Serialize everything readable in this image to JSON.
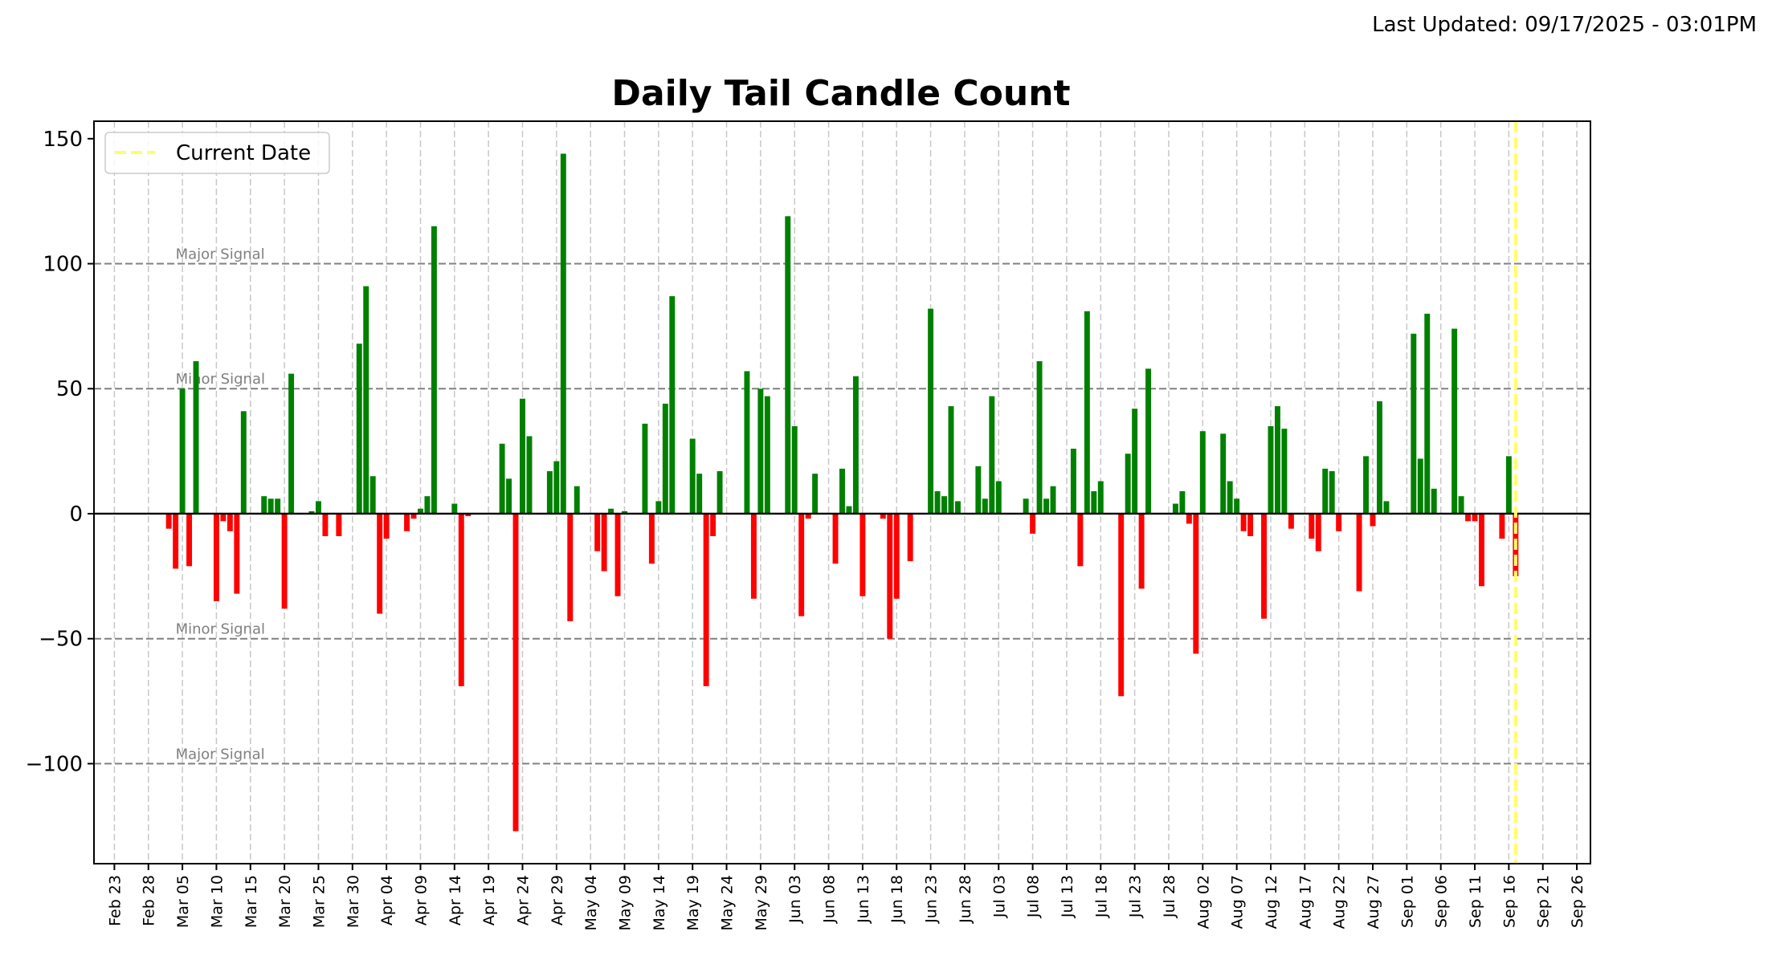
{
  "header": {
    "updated": "Last Updated: 09/17/2025 - 03:01PM"
  },
  "colors": {
    "positive": "#008000",
    "negative": "#ff0000",
    "current_date": "#ffff66",
    "threshold": "#808080",
    "grid": "#c8c8c8",
    "zero_line": "#000000"
  },
  "chart_data": {
    "type": "bar",
    "title": "Daily Tail Candle Count",
    "xlabel": "",
    "ylabel": "",
    "xlim": [
      "2025-02-20",
      "2025-09-28"
    ],
    "ylim": [
      -140,
      157
    ],
    "y_ticks": [
      -100,
      -50,
      0,
      50,
      100,
      150
    ],
    "x_tick_labels": [
      "Feb 23",
      "Feb 28",
      "Mar 05",
      "Mar 10",
      "Mar 15",
      "Mar 20",
      "Mar 25",
      "Mar 30",
      "Apr 04",
      "Apr 09",
      "Apr 14",
      "Apr 19",
      "Apr 24",
      "Apr 29",
      "May 04",
      "May 09",
      "May 14",
      "May 19",
      "May 24",
      "May 29",
      "Jun 03",
      "Jun 08",
      "Jun 13",
      "Jun 18",
      "Jun 23",
      "Jun 28",
      "Jul 03",
      "Jul 08",
      "Jul 13",
      "Jul 18",
      "Jul 23",
      "Jul 28",
      "Aug 02",
      "Aug 07",
      "Aug 12",
      "Aug 17",
      "Aug 22",
      "Aug 27",
      "Sep 01",
      "Sep 06",
      "Sep 11",
      "Sep 16",
      "Sep 21",
      "Sep 26"
    ],
    "x_tick_dates": [
      "2025-02-23",
      "2025-02-28",
      "2025-03-05",
      "2025-03-10",
      "2025-03-15",
      "2025-03-20",
      "2025-03-25",
      "2025-03-30",
      "2025-04-04",
      "2025-04-09",
      "2025-04-14",
      "2025-04-19",
      "2025-04-24",
      "2025-04-29",
      "2025-05-04",
      "2025-05-09",
      "2025-05-14",
      "2025-05-19",
      "2025-05-24",
      "2025-05-29",
      "2025-06-03",
      "2025-06-08",
      "2025-06-13",
      "2025-06-18",
      "2025-06-23",
      "2025-06-28",
      "2025-07-03",
      "2025-07-08",
      "2025-07-13",
      "2025-07-18",
      "2025-07-23",
      "2025-07-28",
      "2025-08-02",
      "2025-08-07",
      "2025-08-12",
      "2025-08-17",
      "2025-08-22",
      "2025-08-27",
      "2025-09-01",
      "2025-09-06",
      "2025-09-11",
      "2025-09-16",
      "2025-09-21",
      "2025-09-26"
    ],
    "grid": true,
    "legend": {
      "placement": "top-left",
      "entries": [
        {
          "label": "Current Date",
          "style": "dashed",
          "color": "#ffff66"
        }
      ]
    },
    "current_date": "2025-09-17",
    "thresholds": [
      {
        "value": 100,
        "label": "Major Signal"
      },
      {
        "value": 50,
        "label": "Minor Signal"
      },
      {
        "value": -50,
        "label": "Minor Signal"
      },
      {
        "value": -100,
        "label": "Major Signal"
      }
    ],
    "bars": [
      {
        "date": "2025-03-03",
        "bull": 0,
        "bear": -6
      },
      {
        "date": "2025-03-04",
        "bull": 0,
        "bear": -22
      },
      {
        "date": "2025-03-05",
        "bull": 50,
        "bear": 0
      },
      {
        "date": "2025-03-06",
        "bull": 0,
        "bear": -21
      },
      {
        "date": "2025-03-07",
        "bull": 61,
        "bear": 0
      },
      {
        "date": "2025-03-10",
        "bull": 0,
        "bear": -35
      },
      {
        "date": "2025-03-11",
        "bull": 0,
        "bear": -3
      },
      {
        "date": "2025-03-12",
        "bull": 0,
        "bear": -7
      },
      {
        "date": "2025-03-13",
        "bull": 0,
        "bear": -32
      },
      {
        "date": "2025-03-14",
        "bull": 41,
        "bear": 0
      },
      {
        "date": "2025-03-17",
        "bull": 7,
        "bear": 0
      },
      {
        "date": "2025-03-18",
        "bull": 6,
        "bear": 0
      },
      {
        "date": "2025-03-19",
        "bull": 6,
        "bear": 0
      },
      {
        "date": "2025-03-20",
        "bull": 0,
        "bear": -38
      },
      {
        "date": "2025-03-21",
        "bull": 56,
        "bear": 0
      },
      {
        "date": "2025-03-24",
        "bull": 1,
        "bear": 0
      },
      {
        "date": "2025-03-25",
        "bull": 5,
        "bear": 0
      },
      {
        "date": "2025-03-26",
        "bull": 0,
        "bear": -9
      },
      {
        "date": "2025-03-28",
        "bull": 0,
        "bear": -9
      },
      {
        "date": "2025-03-31",
        "bull": 68,
        "bear": 0
      },
      {
        "date": "2025-04-01",
        "bull": 91,
        "bear": 0
      },
      {
        "date": "2025-04-02",
        "bull": 15,
        "bear": 0
      },
      {
        "date": "2025-04-03",
        "bull": 0,
        "bear": -40
      },
      {
        "date": "2025-04-04",
        "bull": 0,
        "bear": -10
      },
      {
        "date": "2025-04-07",
        "bull": 0,
        "bear": -7
      },
      {
        "date": "2025-04-08",
        "bull": 0,
        "bear": -2
      },
      {
        "date": "2025-04-09",
        "bull": 2,
        "bear": 0
      },
      {
        "date": "2025-04-10",
        "bull": 7,
        "bear": 0
      },
      {
        "date": "2025-04-11",
        "bull": 115,
        "bear": 0
      },
      {
        "date": "2025-04-14",
        "bull": 4,
        "bear": 0
      },
      {
        "date": "2025-04-15",
        "bull": 0,
        "bear": -69
      },
      {
        "date": "2025-04-16",
        "bull": 0,
        "bear": -1
      },
      {
        "date": "2025-04-21",
        "bull": 28,
        "bear": 0
      },
      {
        "date": "2025-04-22",
        "bull": 14,
        "bear": 0
      },
      {
        "date": "2025-04-23",
        "bull": 0,
        "bear": -127
      },
      {
        "date": "2025-04-24",
        "bull": 46,
        "bear": 0
      },
      {
        "date": "2025-04-25",
        "bull": 31,
        "bear": 0
      },
      {
        "date": "2025-04-28",
        "bull": 17,
        "bear": 0
      },
      {
        "date": "2025-04-29",
        "bull": 21,
        "bear": 0
      },
      {
        "date": "2025-04-30",
        "bull": 144,
        "bear": 0
      },
      {
        "date": "2025-05-01",
        "bull": 0,
        "bear": -43
      },
      {
        "date": "2025-05-02",
        "bull": 11,
        "bear": 0
      },
      {
        "date": "2025-05-05",
        "bull": 0,
        "bear": -15
      },
      {
        "date": "2025-05-06",
        "bull": 0,
        "bear": -23
      },
      {
        "date": "2025-05-07",
        "bull": 2,
        "bear": 0
      },
      {
        "date": "2025-05-08",
        "bull": 0,
        "bear": -33
      },
      {
        "date": "2025-05-09",
        "bull": 1,
        "bear": 0
      },
      {
        "date": "2025-05-12",
        "bull": 36,
        "bear": 0
      },
      {
        "date": "2025-05-13",
        "bull": 0,
        "bear": -20
      },
      {
        "date": "2025-05-14",
        "bull": 5,
        "bear": 0
      },
      {
        "date": "2025-05-15",
        "bull": 44,
        "bear": 0
      },
      {
        "date": "2025-05-16",
        "bull": 87,
        "bear": 0
      },
      {
        "date": "2025-05-19",
        "bull": 30,
        "bear": 0
      },
      {
        "date": "2025-05-20",
        "bull": 16,
        "bear": 0
      },
      {
        "date": "2025-05-21",
        "bull": 0,
        "bear": -69
      },
      {
        "date": "2025-05-22",
        "bull": 0,
        "bear": -9
      },
      {
        "date": "2025-05-23",
        "bull": 17,
        "bear": 0
      },
      {
        "date": "2025-05-27",
        "bull": 57,
        "bear": 0
      },
      {
        "date": "2025-05-28",
        "bull": 0,
        "bear": -34
      },
      {
        "date": "2025-05-29",
        "bull": 50,
        "bear": 0
      },
      {
        "date": "2025-05-30",
        "bull": 47,
        "bear": 0
      },
      {
        "date": "2025-06-02",
        "bull": 119,
        "bear": 0
      },
      {
        "date": "2025-06-03",
        "bull": 35,
        "bear": 0
      },
      {
        "date": "2025-06-04",
        "bull": 0,
        "bear": -41
      },
      {
        "date": "2025-06-05",
        "bull": 0,
        "bear": -2
      },
      {
        "date": "2025-06-06",
        "bull": 16,
        "bear": 0
      },
      {
        "date": "2025-06-09",
        "bull": 0,
        "bear": -20
      },
      {
        "date": "2025-06-10",
        "bull": 18,
        "bear": 0
      },
      {
        "date": "2025-06-11",
        "bull": 3,
        "bear": 0
      },
      {
        "date": "2025-06-12",
        "bull": 55,
        "bear": 0
      },
      {
        "date": "2025-06-13",
        "bull": 0,
        "bear": -33
      },
      {
        "date": "2025-06-16",
        "bull": 0,
        "bear": -2
      },
      {
        "date": "2025-06-17",
        "bull": 0,
        "bear": -50
      },
      {
        "date": "2025-06-18",
        "bull": 0,
        "bear": -34
      },
      {
        "date": "2025-06-20",
        "bull": 0,
        "bear": -19
      },
      {
        "date": "2025-06-23",
        "bull": 82,
        "bear": 0
      },
      {
        "date": "2025-06-24",
        "bull": 9,
        "bear": 0
      },
      {
        "date": "2025-06-25",
        "bull": 7,
        "bear": 0
      },
      {
        "date": "2025-06-26",
        "bull": 43,
        "bear": 0
      },
      {
        "date": "2025-06-27",
        "bull": 5,
        "bear": 0
      },
      {
        "date": "2025-06-30",
        "bull": 19,
        "bear": 0
      },
      {
        "date": "2025-07-01",
        "bull": 6,
        "bear": 0
      },
      {
        "date": "2025-07-02",
        "bull": 47,
        "bear": 0
      },
      {
        "date": "2025-07-03",
        "bull": 13,
        "bear": 0
      },
      {
        "date": "2025-07-07",
        "bull": 6,
        "bear": 0
      },
      {
        "date": "2025-07-08",
        "bull": 0,
        "bear": -8
      },
      {
        "date": "2025-07-09",
        "bull": 61,
        "bear": 0
      },
      {
        "date": "2025-07-10",
        "bull": 6,
        "bear": 0
      },
      {
        "date": "2025-07-11",
        "bull": 11,
        "bear": 0
      },
      {
        "date": "2025-07-14",
        "bull": 26,
        "bear": 0
      },
      {
        "date": "2025-07-15",
        "bull": 0,
        "bear": -21
      },
      {
        "date": "2025-07-16",
        "bull": 81,
        "bear": 0
      },
      {
        "date": "2025-07-17",
        "bull": 9,
        "bear": 0
      },
      {
        "date": "2025-07-18",
        "bull": 13,
        "bear": 0
      },
      {
        "date": "2025-07-21",
        "bull": 0,
        "bear": -73
      },
      {
        "date": "2025-07-22",
        "bull": 24,
        "bear": 0
      },
      {
        "date": "2025-07-23",
        "bull": 42,
        "bear": 0
      },
      {
        "date": "2025-07-24",
        "bull": 0,
        "bear": -30
      },
      {
        "date": "2025-07-25",
        "bull": 58,
        "bear": 0
      },
      {
        "date": "2025-07-29",
        "bull": 4,
        "bear": 0
      },
      {
        "date": "2025-07-30",
        "bull": 9,
        "bear": 0
      },
      {
        "date": "2025-07-31",
        "bull": 0,
        "bear": -4
      },
      {
        "date": "2025-08-01",
        "bull": 0,
        "bear": -56
      },
      {
        "date": "2025-08-02",
        "bull": 33,
        "bear": 0
      },
      {
        "date": "2025-08-05",
        "bull": 32,
        "bear": 0
      },
      {
        "date": "2025-08-06",
        "bull": 13,
        "bear": 0
      },
      {
        "date": "2025-08-07",
        "bull": 6,
        "bear": 0
      },
      {
        "date": "2025-08-08",
        "bull": 0,
        "bear": -7
      },
      {
        "date": "2025-08-09",
        "bull": 0,
        "bear": -9
      },
      {
        "date": "2025-08-11",
        "bull": 0,
        "bear": -42
      },
      {
        "date": "2025-08-12",
        "bull": 35,
        "bear": 0
      },
      {
        "date": "2025-08-13",
        "bull": 43,
        "bear": 0
      },
      {
        "date": "2025-08-14",
        "bull": 34,
        "bear": 0
      },
      {
        "date": "2025-08-15",
        "bull": 0,
        "bear": -6
      },
      {
        "date": "2025-08-18",
        "bull": 0,
        "bear": -10
      },
      {
        "date": "2025-08-19",
        "bull": 0,
        "bear": -15
      },
      {
        "date": "2025-08-20",
        "bull": 18,
        "bear": 0
      },
      {
        "date": "2025-08-21",
        "bull": 17,
        "bear": 0
      },
      {
        "date": "2025-08-22",
        "bull": 0,
        "bear": -7
      },
      {
        "date": "2025-08-25",
        "bull": 0,
        "bear": -31
      },
      {
        "date": "2025-08-26",
        "bull": 23,
        "bear": 0
      },
      {
        "date": "2025-08-27",
        "bull": 0,
        "bear": -5
      },
      {
        "date": "2025-08-28",
        "bull": 45,
        "bear": 0
      },
      {
        "date": "2025-08-29",
        "bull": 5,
        "bear": 0
      },
      {
        "date": "2025-09-02",
        "bull": 72,
        "bear": 0
      },
      {
        "date": "2025-09-03",
        "bull": 22,
        "bear": 0
      },
      {
        "date": "2025-09-04",
        "bull": 80,
        "bear": 0
      },
      {
        "date": "2025-09-05",
        "bull": 10,
        "bear": 0
      },
      {
        "date": "2025-09-08",
        "bull": 74,
        "bear": 0
      },
      {
        "date": "2025-09-09",
        "bull": 7,
        "bear": 0
      },
      {
        "date": "2025-09-10",
        "bull": 0,
        "bear": -3
      },
      {
        "date": "2025-09-11",
        "bull": 0,
        "bear": -3
      },
      {
        "date": "2025-09-12",
        "bull": 0,
        "bear": -29
      },
      {
        "date": "2025-09-15",
        "bull": 0,
        "bear": -10
      },
      {
        "date": "2025-09-16",
        "bull": 23,
        "bear": 0
      },
      {
        "date": "2025-09-17",
        "bull": 0,
        "bear": -25
      }
    ]
  }
}
